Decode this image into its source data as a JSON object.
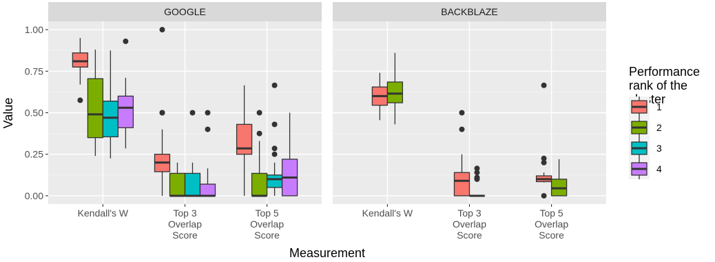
{
  "chart_data": {
    "type": "boxplot",
    "xlabel": "Measurement",
    "ylabel": "Value",
    "ylim": [
      -0.05,
      1.05
    ],
    "y_ticks": [
      0,
      0.25,
      0.5,
      0.75,
      1.0
    ],
    "y_tick_labels": [
      "0.00",
      "0.25",
      "0.50",
      "0.75",
      "1.00"
    ],
    "categories": [
      [
        "Kendall's W"
      ],
      [
        "Top 3",
        "Overlap",
        "Score"
      ],
      [
        "Top 5",
        "Overlap",
        "Score"
      ]
    ],
    "legend": {
      "title": [
        "Performance",
        "rank of the",
        "cluster"
      ],
      "placement": "right",
      "entries": [
        {
          "label": "1",
          "color": "#F8766D"
        },
        {
          "label": "2",
          "color": "#7CAE00"
        },
        {
          "label": "3",
          "color": "#00BFC4"
        },
        {
          "label": "4",
          "color": "#C77CFF"
        }
      ]
    },
    "panels": [
      {
        "title": "GOOGLE",
        "groups": [
          {
            "category": 0,
            "boxes": [
              {
                "rank": 1,
                "min": 0.67,
                "q1": 0.775,
                "median": 0.81,
                "q3": 0.86,
                "max": 0.95,
                "outliers": [
                  0.575
                ]
              },
              {
                "rank": 2,
                "min": 0.24,
                "q1": 0.35,
                "median": 0.49,
                "q3": 0.705,
                "max": 0.88,
                "outliers": []
              },
              {
                "rank": 3,
                "min": 0.225,
                "q1": 0.355,
                "median": 0.47,
                "q3": 0.57,
                "max": 0.875,
                "outliers": []
              },
              {
                "rank": 4,
                "min": 0.285,
                "q1": 0.41,
                "median": 0.53,
                "q3": 0.6,
                "max": 0.71,
                "outliers": [
                  0.93
                ]
              }
            ]
          },
          {
            "category": 1,
            "boxes": [
              {
                "rank": 1,
                "min": 0.0,
                "q1": 0.145,
                "median": 0.2,
                "q3": 0.25,
                "max": 0.4,
                "outliers": [
                  1.0,
                  0.5,
                  0.5
                ]
              },
              {
                "rank": 2,
                "min": 0.0,
                "q1": 0.0,
                "median": 0.0,
                "q3": 0.135,
                "max": 0.2,
                "outliers": []
              },
              {
                "rank": 3,
                "min": 0.0,
                "q1": 0.0,
                "median": 0.0,
                "q3": 0.135,
                "max": 0.2,
                "outliers": [
                  0.5
                ]
              },
              {
                "rank": 4,
                "min": 0.0,
                "q1": 0.0,
                "median": 0.0,
                "q3": 0.07,
                "max": 0.165,
                "outliers": [
                  0.5,
                  0.4
                ]
              }
            ]
          },
          {
            "category": 2,
            "boxes": [
              {
                "rank": 1,
                "min": 0.0,
                "q1": 0.25,
                "median": 0.285,
                "q3": 0.43,
                "max": 0.665,
                "outliers": []
              },
              {
                "rank": 2,
                "min": 0.0,
                "q1": 0.0,
                "median": 0.0,
                "q3": 0.135,
                "max": 0.33,
                "outliers": [
                  0.5,
                  0.375
                ]
              },
              {
                "rank": 3,
                "min": 0.0,
                "q1": 0.05,
                "median": 0.1,
                "q3": 0.125,
                "max": 0.2,
                "outliers": [
                  0.665,
                  0.43,
                  0.285,
                  0.25
                ]
              },
              {
                "rank": 4,
                "min": 0.0,
                "q1": 0.0,
                "median": 0.11,
                "q3": 0.22,
                "max": 0.5,
                "outliers": []
              }
            ]
          }
        ]
      },
      {
        "title": "BACKBLAZE",
        "groups": [
          {
            "category": 0,
            "boxes": [
              {
                "rank": 1,
                "min": 0.455,
                "q1": 0.545,
                "median": 0.6,
                "q3": 0.655,
                "max": 0.74,
                "outliers": []
              },
              {
                "rank": 2,
                "min": 0.43,
                "q1": 0.56,
                "median": 0.615,
                "q3": 0.685,
                "max": 0.86,
                "outliers": []
              }
            ]
          },
          {
            "category": 1,
            "boxes": [
              {
                "rank": 1,
                "min": 0.0,
                "q1": 0.0,
                "median": 0.09,
                "q3": 0.14,
                "max": 0.25,
                "outliers": [
                  0.5,
                  0.4
                ]
              },
              {
                "rank": 2,
                "min": 0.0,
                "q1": 0.0,
                "median": 0.0,
                "q3": 0.0,
                "max": 0.0,
                "outliers": [
                  0.165,
                  0.14,
                  0.11,
                  0.1
                ]
              }
            ]
          },
          {
            "category": 2,
            "boxes": [
              {
                "rank": 1,
                "min": 0.08,
                "q1": 0.085,
                "median": 0.1,
                "q3": 0.12,
                "max": 0.14,
                "outliers": [
                  0.665,
                  0.225,
                  0.2,
                  0.0
                ]
              },
              {
                "rank": 2,
                "min": 0.0,
                "q1": 0.0,
                "median": 0.045,
                "q3": 0.1,
                "max": 0.22,
                "outliers": []
              }
            ]
          }
        ]
      }
    ]
  }
}
